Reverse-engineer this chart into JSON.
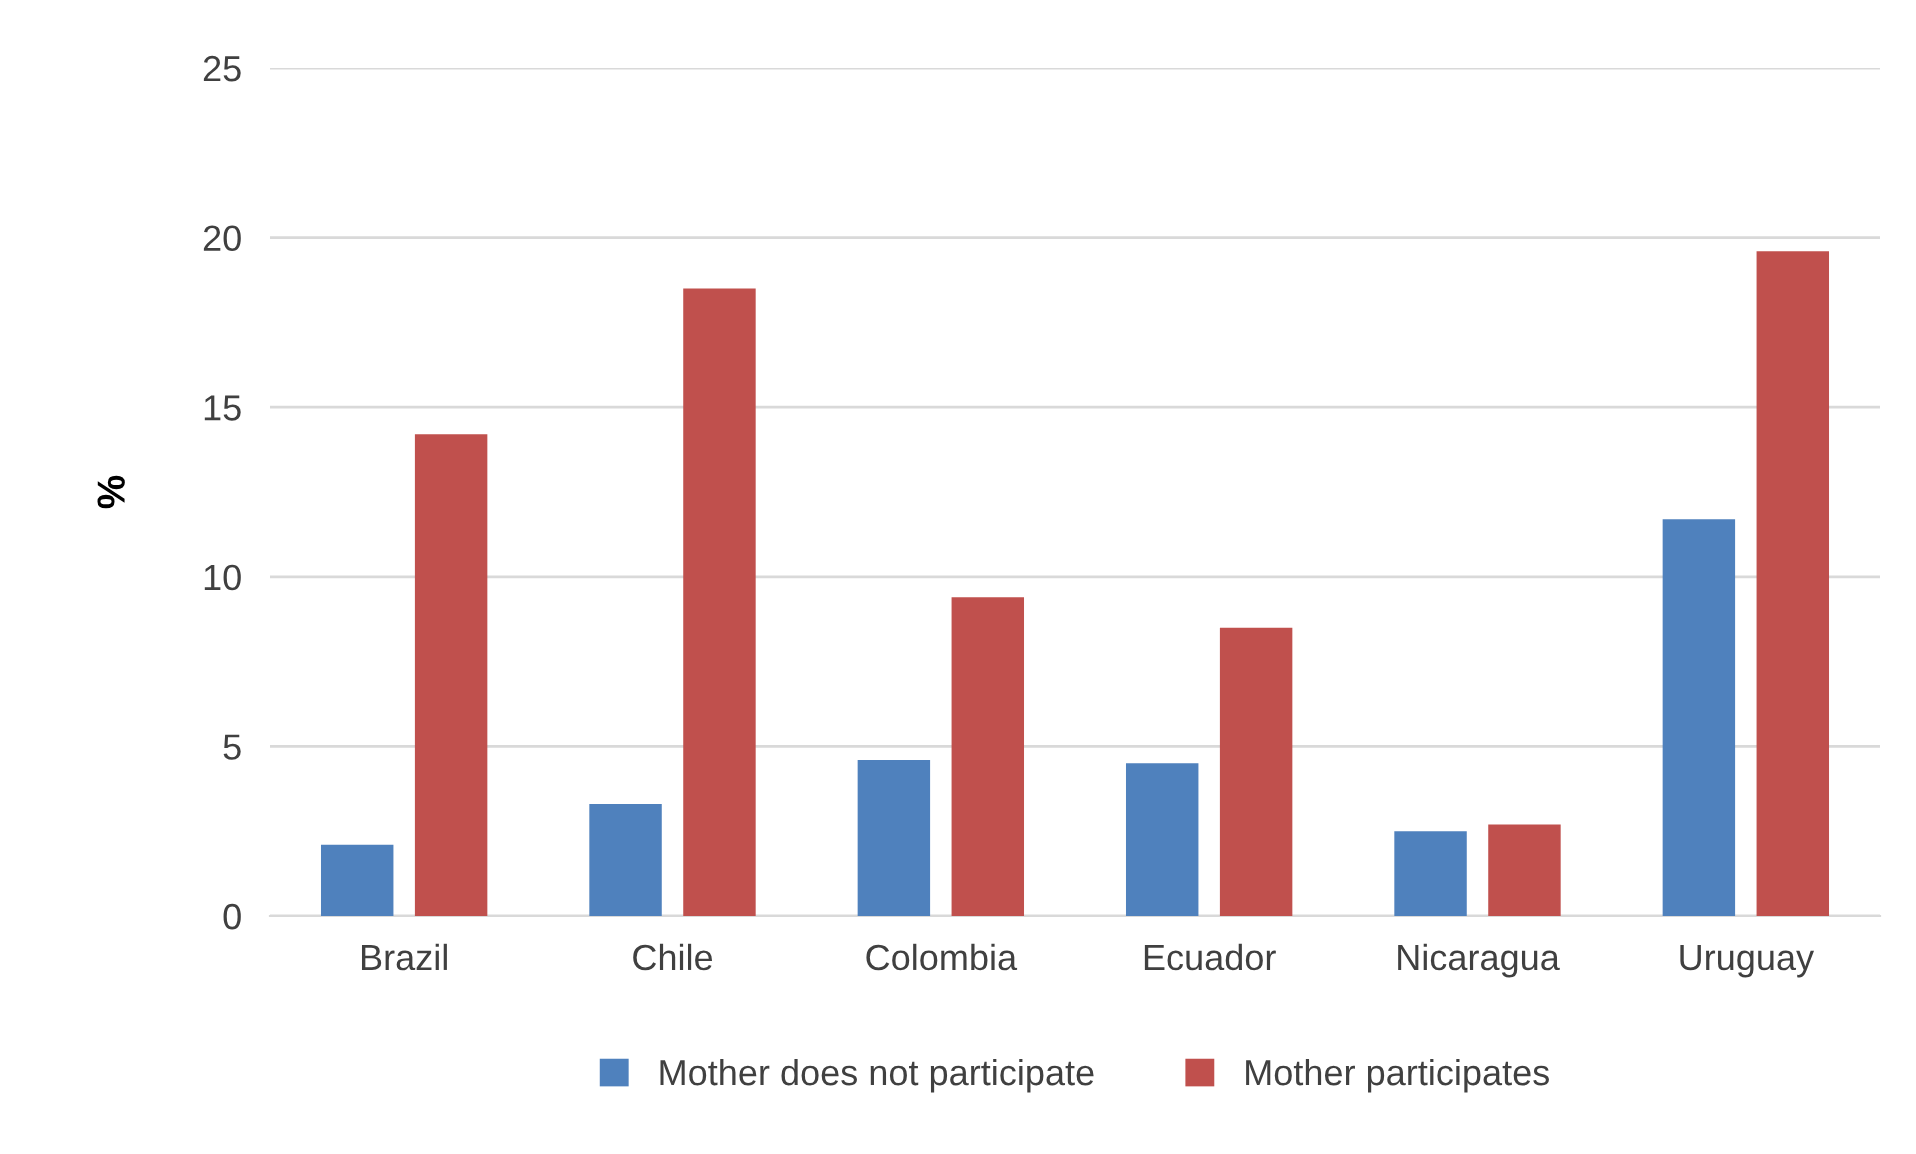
{
  "chart_data": {
    "type": "bar",
    "ylabel": "%",
    "categories": [
      "Brazil",
      "Chile",
      "Colombia",
      "Ecuador",
      "Nicaragua",
      "Uruguay"
    ],
    "series": [
      {
        "name": "Mother does not participate",
        "color": "#4f81bd",
        "values": [
          2.1,
          3.3,
          4.6,
          4.5,
          2.5,
          11.7
        ]
      },
      {
        "name": "Mother participates",
        "color": "#c0504d",
        "values": [
          14.2,
          18.5,
          9.4,
          8.5,
          2.7,
          19.6
        ]
      }
    ],
    "ylim": [
      0,
      25
    ],
    "yticks": [
      0,
      5,
      10,
      15,
      20,
      25
    ],
    "grid": "y",
    "legend": "bottom"
  }
}
